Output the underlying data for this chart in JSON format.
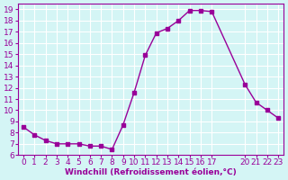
{
  "x": [
    0,
    1,
    2,
    3,
    4,
    5,
    6,
    7,
    8,
    9,
    10,
    11,
    12,
    13,
    14,
    15,
    16,
    17,
    20,
    21,
    22,
    23
  ],
  "y": [
    8.5,
    7.8,
    7.3,
    7.0,
    7.0,
    7.0,
    6.8,
    6.8,
    6.5,
    8.7,
    11.6,
    14.9,
    16.9,
    17.3,
    18.0,
    18.9,
    18.9,
    18.8,
    12.3,
    10.7,
    10.0,
    9.3
  ],
  "xlim": [
    -0.5,
    23.5
  ],
  "ylim": [
    6,
    19.5
  ],
  "yticks": [
    6,
    7,
    8,
    9,
    10,
    11,
    12,
    13,
    14,
    15,
    16,
    17,
    18,
    19
  ],
  "xtick_positions": [
    0,
    1,
    2,
    3,
    4,
    5,
    6,
    7,
    8,
    9,
    10,
    11,
    12,
    13,
    14,
    15,
    16,
    17,
    20,
    21,
    22,
    23
  ],
  "xtick_labels": [
    "0",
    "1",
    "2",
    "3",
    "4",
    "5",
    "6",
    "7",
    "8",
    "9",
    "10",
    "11",
    "12",
    "13",
    "14",
    "15",
    "16",
    "17",
    "20",
    "21",
    "22",
    "23"
  ],
  "xlabel": "Windchill (Refroidissement éolien,°C)",
  "line_color": "#990099",
  "marker": "s",
  "marker_size": 3,
  "bg_color": "#d4f5f5",
  "grid_color": "#ffffff",
  "tick_color": "#990099",
  "label_color": "#990099",
  "axis_fontsize": 6.5
}
